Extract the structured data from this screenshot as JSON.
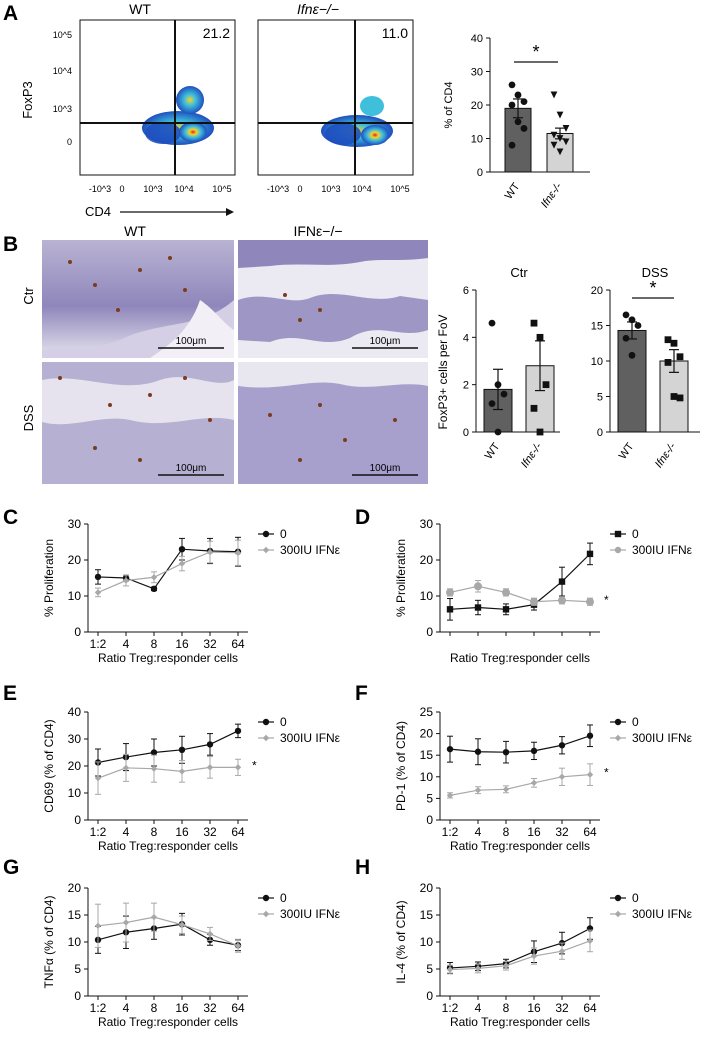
{
  "panel_letters": {
    "A": "A",
    "B": "B",
    "C": "C",
    "D": "D",
    "E": "E",
    "F": "F",
    "G": "G",
    "H": "H"
  },
  "panel_a": {
    "flow_left_title": "WT",
    "flow_right_title": "Ifnε−/−",
    "flow_left_value": "21.2",
    "flow_right_value": "11.0",
    "flow_ylabel": "FoxP3",
    "flow_xlabel": "CD4",
    "flow_yticks": [
      "10^5",
      "10^4",
      "10^3",
      "0"
    ],
    "flow_xticks": [
      "-10^3",
      "0",
      "10^3",
      "10^4",
      "10^5"
    ],
    "flow_colors": {
      "low": "#1f4fbf",
      "mid": "#3fbfdc",
      "high": "#f5d22a",
      "peak": "#e0231b"
    }
  },
  "panel_b": {
    "histo_col_wt": "WT",
    "histo_col_ko": "IFNε−/−",
    "histo_row_ctr": "Ctr",
    "histo_row_dss": "DSS",
    "scale_bar": "100μm",
    "ylabel": "FoxP3+ cells per FoV"
  },
  "star": "*",
  "chart_data": [
    {
      "id": "A-bar",
      "type": "bar",
      "ylabel": "% of CD4",
      "ylim": [
        0,
        40
      ],
      "yticks": [
        0,
        10,
        20,
        30,
        40
      ],
      "categories": [
        "WT",
        "Ifnε-/-"
      ],
      "values": [
        19,
        11.5
      ],
      "errors": [
        2.8,
        1.6
      ],
      "bar_colors": [
        "#606060",
        "#d4d4d4"
      ],
      "points": [
        [
          26,
          23,
          21,
          20,
          15,
          13,
          8
        ],
        [
          23,
          17,
          13,
          11,
          10,
          9,
          8,
          6
        ]
      ],
      "markers": [
        "circle",
        "triangle-down"
      ],
      "significance": "*"
    },
    {
      "id": "B-ctr",
      "type": "bar",
      "title": "Ctr",
      "ylim": [
        0,
        6
      ],
      "yticks": [
        0,
        2,
        4,
        6
      ],
      "categories": [
        "WT",
        "Ifnε-/-"
      ],
      "values": [
        1.8,
        2.8
      ],
      "errors": [
        0.85,
        1.05
      ],
      "bar_colors": [
        "#606060",
        "#d4d4d4"
      ],
      "points": [
        [
          4.6,
          2.0,
          1.6,
          1.2,
          0.0
        ],
        [
          4.6,
          4.0,
          2.0,
          1.0,
          0.0
        ]
      ],
      "markers": [
        "circle",
        "square"
      ]
    },
    {
      "id": "B-dss",
      "type": "bar",
      "title": "DSS",
      "ylim": [
        0,
        20
      ],
      "yticks": [
        0,
        5,
        10,
        15,
        20
      ],
      "categories": [
        "WT",
        "Ifnε-/-"
      ],
      "values": [
        14.3,
        10
      ],
      "errors": [
        1.2,
        1.6
      ],
      "bar_colors": [
        "#606060",
        "#d4d4d4"
      ],
      "points": [
        [
          16.5,
          15.8,
          15.0,
          13.2,
          10.8
        ],
        [
          13.0,
          12.5,
          10.6,
          9.8,
          5.0,
          4.8
        ]
      ],
      "markers": [
        "circle",
        "square"
      ],
      "significance": "*"
    },
    {
      "id": "C",
      "type": "line",
      "ylabel": "% Proliferation",
      "xlabel": "Ratio Treg:responder cells",
      "ylim": [
        0,
        30
      ],
      "yticks": [
        0,
        10,
        20,
        30
      ],
      "categories": [
        "1:2",
        "4",
        "8",
        "16",
        "32",
        "64"
      ],
      "legend": "top-right",
      "series": [
        {
          "name": "0",
          "color": "#111111",
          "marker": "circle",
          "values": [
            15.3,
            15,
            12,
            23,
            22.5,
            22.3
          ],
          "errors": [
            2,
            0.8,
            0.5,
            3,
            3.5,
            4
          ]
        },
        {
          "name": "300IU IFNε",
          "color": "#a8a8a8",
          "marker": "diamond",
          "values": [
            11,
            14.3,
            15.2,
            19,
            22.2,
            22
          ],
          "errors": [
            1.2,
            1.5,
            1.5,
            2,
            3,
            3.5
          ]
        }
      ]
    },
    {
      "id": "D",
      "type": "line",
      "ylabel": "% Proliferation",
      "xlabel": "Ratio Treg:responder cells",
      "ylim": [
        0,
        30
      ],
      "yticks": [
        0,
        10,
        20,
        30
      ],
      "categories": [
        "",
        "",
        "",
        "",
        "",
        ""
      ],
      "legend": "top-right",
      "significance": "*",
      "series": [
        {
          "name": "0",
          "color": "#111111",
          "marker": "square",
          "values": [
            6.3,
            6.8,
            6.3,
            7.6,
            14,
            21.7
          ],
          "errors": [
            3,
            2,
            1.5,
            1.5,
            4,
            3
          ]
        },
        {
          "name": "300IU IFNε",
          "color": "#a8a8a8",
          "marker": "circle",
          "values": [
            11,
            12.7,
            11,
            8.4,
            8.8,
            8.4
          ],
          "errors": [
            1,
            1.6,
            1,
            1,
            1,
            1
          ]
        }
      ]
    },
    {
      "id": "E",
      "type": "line",
      "ylabel": "CD69 (% of CD4)",
      "xlabel": "Ratio Treg:responder cells",
      "ylim": [
        0,
        40
      ],
      "yticks": [
        0,
        10,
        20,
        30,
        40
      ],
      "categories": [
        "1:2",
        "4",
        "8",
        "16",
        "32",
        "64"
      ],
      "legend": "top-right",
      "significance": "*",
      "series": [
        {
          "name": "0",
          "color": "#111111",
          "marker": "circle",
          "values": [
            21.3,
            23.3,
            25,
            26,
            28,
            33
          ],
          "errors": [
            5,
            5,
            5,
            5,
            4,
            2.5
          ]
        },
        {
          "name": "300IU IFNε",
          "color": "#a8a8a8",
          "marker": "diamond",
          "values": [
            15.5,
            19.3,
            19,
            18,
            19.5,
            19.5
          ],
          "errors": [
            6,
            5,
            5,
            4,
            4,
            3
          ]
        }
      ]
    },
    {
      "id": "F",
      "type": "line",
      "ylabel": "PD-1 (% of CD4)",
      "xlabel": "Ratio Treg:responder cells",
      "ylim": [
        0,
        25
      ],
      "yticks": [
        0,
        5,
        10,
        15,
        20,
        25
      ],
      "categories": [
        "1:2",
        "4",
        "8",
        "16",
        "32",
        "64"
      ],
      "legend": "top-right",
      "significance": "*",
      "series": [
        {
          "name": "0",
          "color": "#111111",
          "marker": "circle",
          "values": [
            16.4,
            15.8,
            15.7,
            16,
            17.3,
            19.5
          ],
          "errors": [
            3,
            3,
            2.5,
            2,
            2,
            2.5
          ]
        },
        {
          "name": "300IU IFNε",
          "color": "#a8a8a8",
          "marker": "diamond",
          "values": [
            5.7,
            6.9,
            7.1,
            8.6,
            10,
            10.5
          ],
          "errors": [
            0.6,
            0.8,
            0.8,
            1,
            2,
            2.5
          ]
        }
      ]
    },
    {
      "id": "G",
      "type": "line",
      "ylabel": "TNFα (% of CD4)",
      "xlabel": "Ratio Treg:responder cells",
      "ylim": [
        0,
        20
      ],
      "yticks": [
        0,
        5,
        10,
        15,
        20
      ],
      "categories": [
        "1:2",
        "4",
        "8",
        "16",
        "32",
        "64"
      ],
      "legend": "top-right",
      "series": [
        {
          "name": "0",
          "color": "#111111",
          "marker": "circle",
          "values": [
            10.4,
            11.8,
            12.5,
            13.3,
            10.4,
            9.4
          ],
          "errors": [
            2.5,
            3,
            2,
            2,
            1,
            1
          ]
        },
        {
          "name": "300IU IFNε",
          "color": "#a8a8a8",
          "marker": "diamond",
          "values": [
            13,
            13.6,
            14.6,
            13.2,
            11.5,
            9.3
          ],
          "errors": [
            4,
            3.6,
            2.6,
            1.6,
            1.2,
            1.2
          ]
        }
      ]
    },
    {
      "id": "H",
      "type": "line",
      "ylabel": "IL-4 (% of CD4)",
      "xlabel": "Ratio Treg:responder cells",
      "ylim": [
        0,
        20
      ],
      "yticks": [
        0,
        5,
        10,
        15,
        20
      ],
      "categories": [
        "1:2",
        "4",
        "8",
        "16",
        "32",
        "64"
      ],
      "legend": "top-right",
      "series": [
        {
          "name": "0",
          "color": "#111111",
          "marker": "circle",
          "values": [
            5.2,
            5.5,
            6,
            8.2,
            9.8,
            12.5
          ],
          "errors": [
            1,
            0.8,
            0.8,
            2,
            2,
            2
          ]
        },
        {
          "name": "300IU IFNε",
          "color": "#a8a8a8",
          "marker": "diamond",
          "values": [
            4.9,
            5.1,
            5.6,
            7.4,
            8.3,
            10.2
          ],
          "errors": [
            0.8,
            0.8,
            0.8,
            1.5,
            1.5,
            2
          ]
        }
      ]
    }
  ]
}
